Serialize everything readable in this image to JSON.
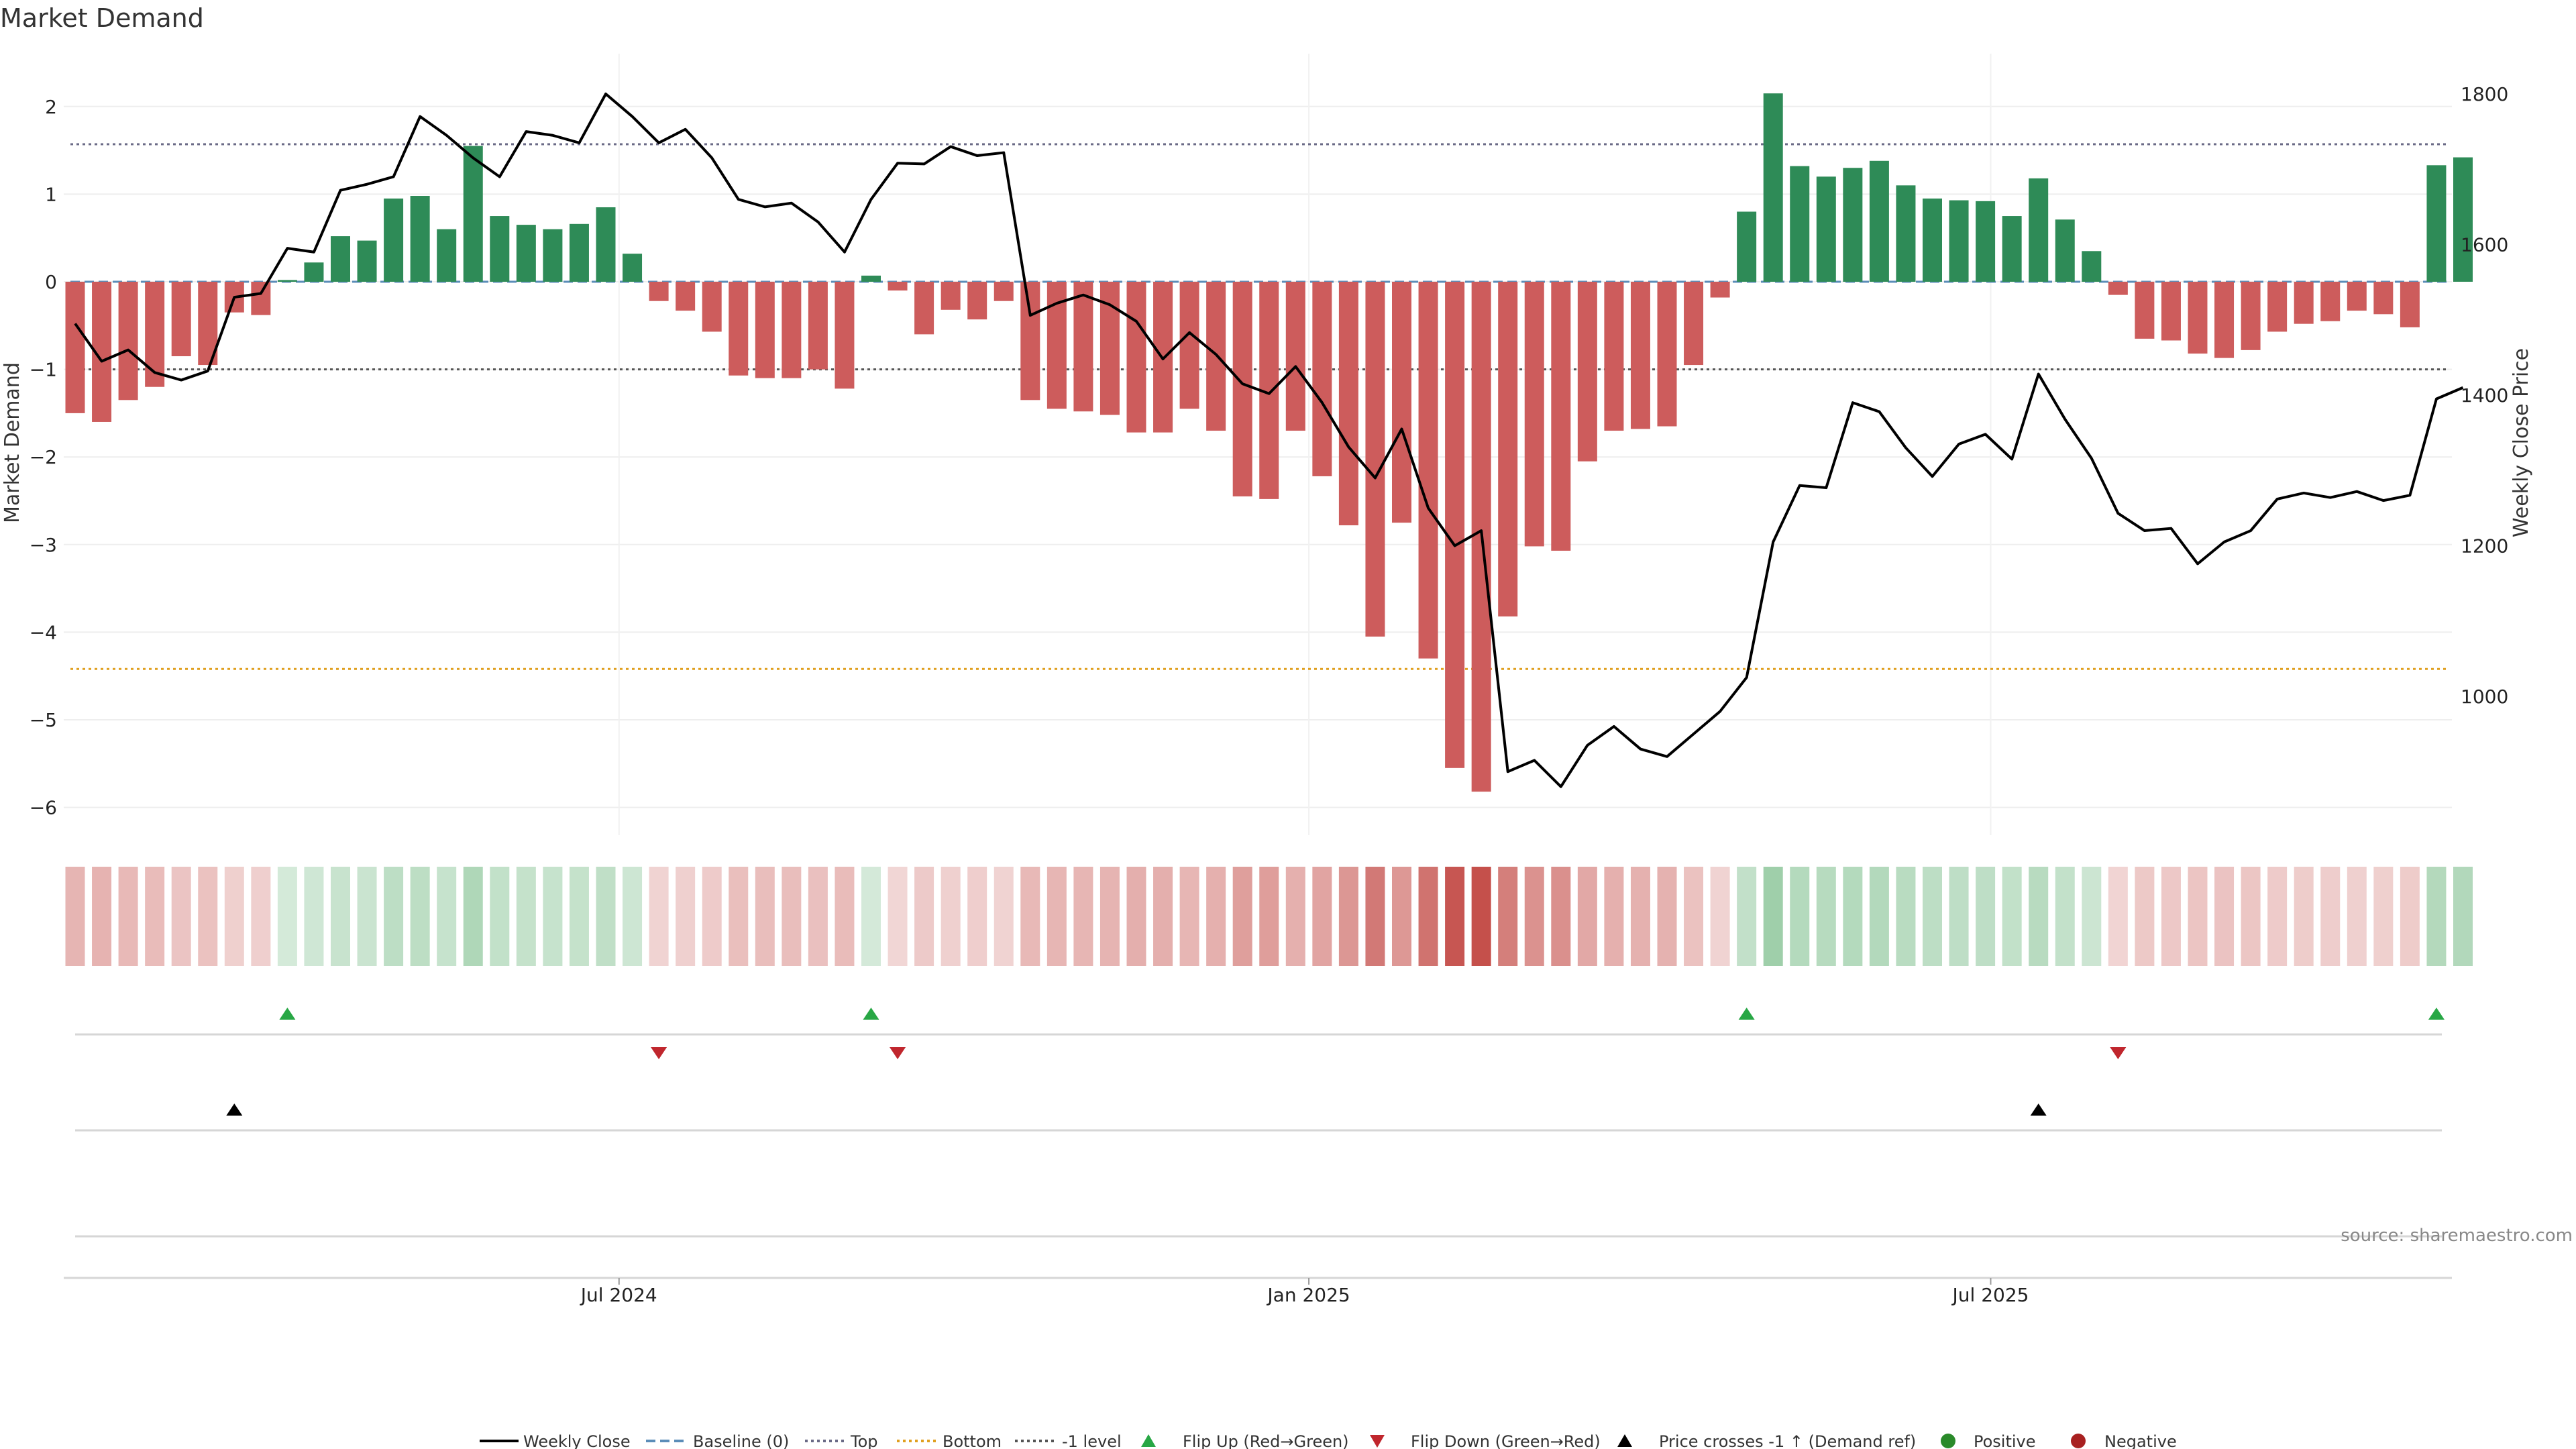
{
  "chart_data": {
    "type": "bar",
    "title": "Market Demand",
    "ylabel": "Market Demand",
    "y2label": "Weekly Close Price",
    "ylim": [
      -6.3,
      2.6
    ],
    "y2lim": [
      850,
      1825
    ],
    "yticks": [
      "2",
      "1",
      "0",
      "−1",
      "−2",
      "−3",
      "−4",
      "−5",
      "−6"
    ],
    "ytick_values": [
      2,
      1,
      0,
      -1,
      -2,
      -3,
      -4,
      -5,
      -6
    ],
    "y2ticks": [
      "1800",
      "1600",
      "1400",
      "1200",
      "1000"
    ],
    "y2tick_values": [
      1800,
      1600,
      1400,
      1200,
      1000
    ],
    "xticks": [
      {
        "label": "Jul 2024",
        "index": 20.5
      },
      {
        "label": "Jan 2025",
        "index": 46.5
      },
      {
        "label": "Jul 2025",
        "index": 72.2
      }
    ],
    "reference_lines": [
      {
        "name": "Baseline (0)",
        "value": 0,
        "color": "#5b8db8",
        "style": "dash"
      },
      {
        "name": "Top",
        "value": 1.57,
        "color": "#6a6a86",
        "style": "dot"
      },
      {
        "name": "Bottom",
        "value": -4.42,
        "color": "#e0a020",
        "style": "dot"
      },
      {
        "name": "-1 level",
        "value": -1.0,
        "color": "#555555",
        "style": "dot"
      }
    ],
    "demand": [
      -1.5,
      -1.6,
      -1.35,
      -1.2,
      -0.85,
      -0.95,
      -0.35,
      -0.38,
      0.02,
      0.22,
      0.52,
      0.47,
      0.95,
      0.98,
      0.6,
      1.55,
      0.75,
      0.65,
      0.6,
      0.66,
      0.85,
      0.32,
      -0.22,
      -0.33,
      -0.57,
      -1.07,
      -1.1,
      -1.1,
      -1.0,
      -1.22,
      0.07,
      -0.1,
      -0.6,
      -0.32,
      -0.43,
      -0.22,
      -1.35,
      -1.45,
      -1.48,
      -1.52,
      -1.72,
      -1.72,
      -1.45,
      -1.7,
      -2.45,
      -2.48,
      -1.7,
      -2.22,
      -2.78,
      -4.05,
      -2.75,
      -4.3,
      -5.55,
      -5.82,
      -3.82,
      -3.02,
      -3.07,
      -2.05,
      -1.7,
      -1.68,
      -1.65,
      -0.95,
      -0.18,
      0.8,
      2.15,
      1.32,
      1.2,
      1.3,
      1.38,
      1.1,
      0.95,
      0.93,
      0.92,
      0.75,
      1.18,
      0.71,
      0.35,
      -0.15,
      -0.65,
      -0.67,
      -0.82,
      -0.87,
      -0.78,
      -0.57,
      -0.48,
      -0.45,
      -0.33,
      -0.37,
      -0.52,
      1.33,
      1.42
    ],
    "weekly_close": [
      1495,
      1445,
      1460,
      1430,
      1420,
      1432,
      1530,
      1535,
      1595,
      1590,
      1672,
      1680,
      1690,
      1770,
      1745,
      1715,
      1690,
      1750,
      1745,
      1735,
      1800,
      1770,
      1735,
      1753,
      1715,
      1660,
      1650,
      1655,
      1630,
      1590,
      1660,
      1708,
      1707,
      1730,
      1718,
      1722,
      1506,
      1522,
      1533,
      1520,
      1498,
      1448,
      1483,
      1454,
      1415,
      1402,
      1438,
      1390,
      1331,
      1290,
      1355,
      1250,
      1200,
      1220,
      900,
      915,
      880,
      935,
      960,
      930,
      920,
      950,
      980,
      1025,
      1205,
      1280,
      1277,
      1390,
      1378,
      1330,
      1292,
      1335,
      1348,
      1315,
      1428,
      1368,
      1316,
      1243,
      1220,
      1223,
      1176,
      1205,
      1220,
      1262,
      1270,
      1264,
      1272,
      1260,
      1267,
      1395,
      1410
    ],
    "flip_up_index": [
      8,
      30,
      63,
      89
    ],
    "flip_down_index": [
      22,
      31,
      77
    ],
    "price_cross_index": [
      6,
      74
    ],
    "legend": [
      "Weekly Close",
      "Baseline (0)",
      "Top",
      "Bottom",
      "-1 level",
      "Flip Up (Red→Green)",
      "Flip Down (Green→Red)",
      "Price crosses -1 ↑ (Demand ref)",
      "Positive",
      "Negative"
    ],
    "source": "source: sharemaestro.com"
  },
  "colors": {
    "positive": "#2e8b57",
    "negative": "#cd5c5c",
    "price_line": "#000000",
    "flip_up": "#28a745",
    "flip_down": "#c0262d",
    "price_cross": "#000000",
    "positive_dot": "#2a8a2a",
    "negative_dot": "#a82020"
  }
}
